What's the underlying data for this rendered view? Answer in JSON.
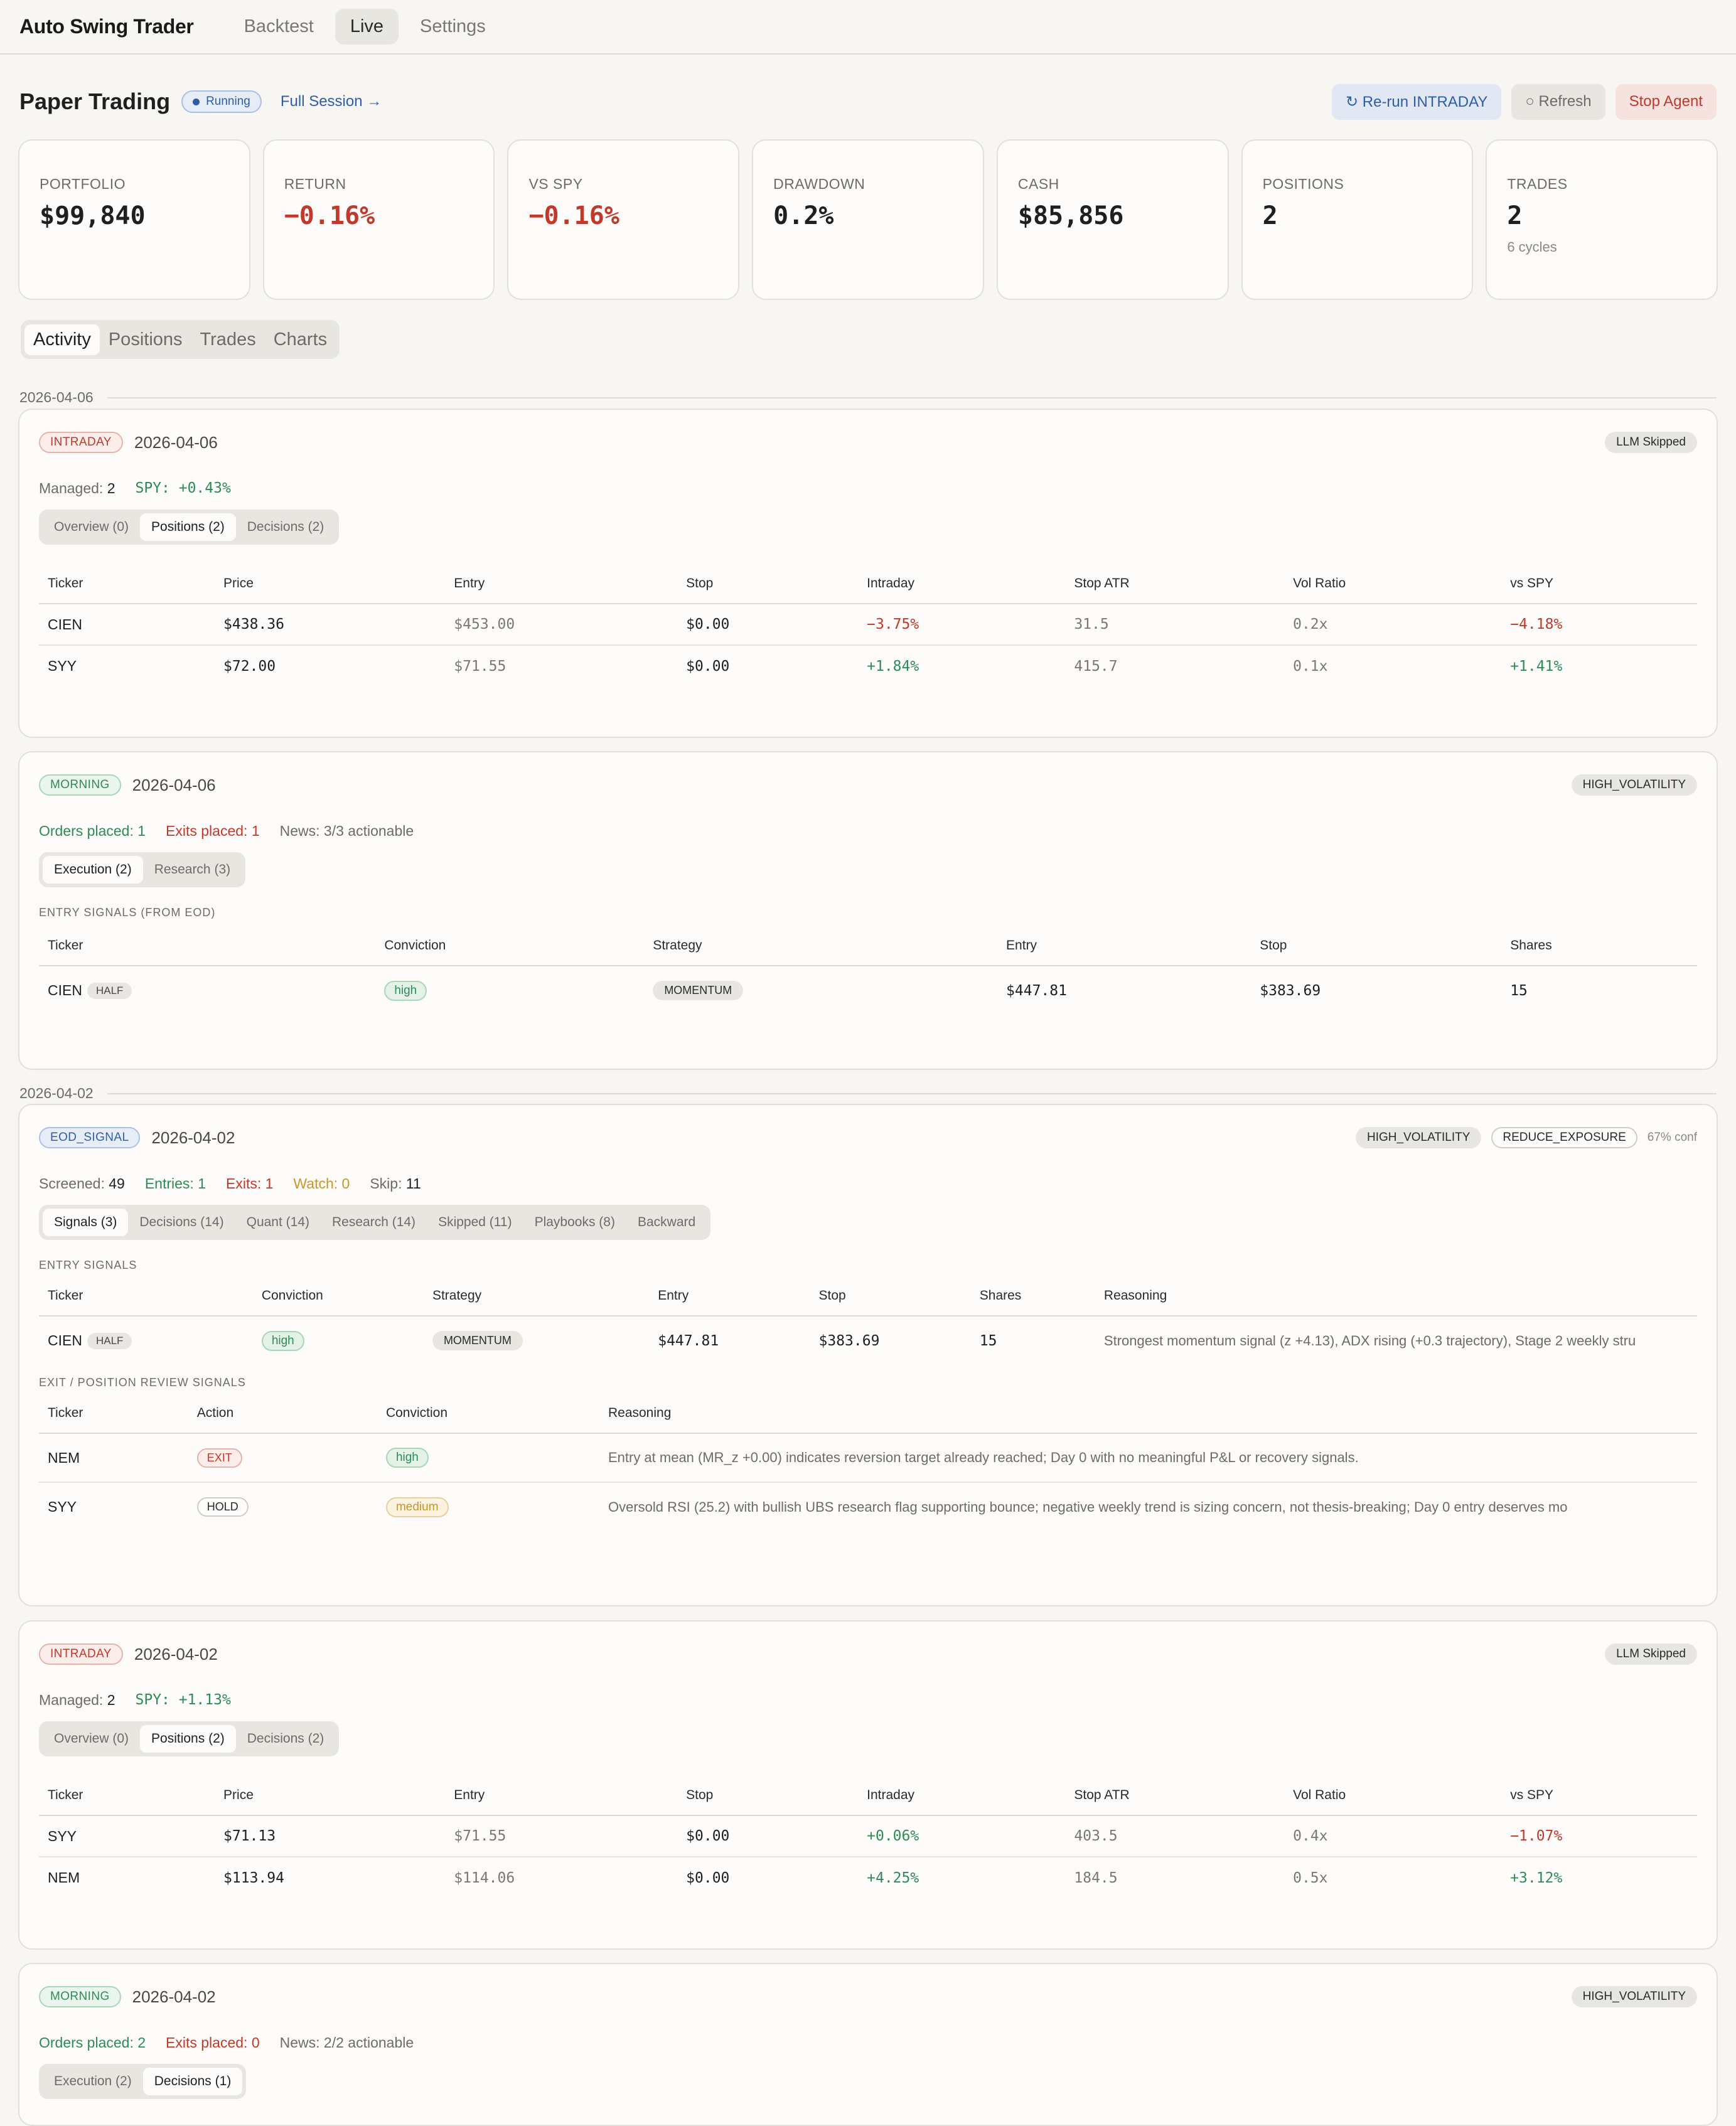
{
  "app": {
    "brand": "Auto Swing Trader",
    "nav": [
      "Backtest",
      "Live",
      "Settings"
    ],
    "active_nav": "Live"
  },
  "header": {
    "title": "Paper Trading",
    "status": "Running",
    "full_session": "Full Session →",
    "rerun_label": "↻ Re-run INTRADAY",
    "refresh_label": "○ Refresh",
    "stop_label": "Stop Agent"
  },
  "stats": {
    "portfolio": {
      "label": "PORTFOLIO",
      "value": "$99,840"
    },
    "return": {
      "label": "RETURN",
      "value": "−0.16%"
    },
    "vs_spy": {
      "label": "VS SPY",
      "value": "−0.16%"
    },
    "drawdown": {
      "label": "DRAWDOWN",
      "value": "0.2%"
    },
    "cash": {
      "label": "CASH",
      "value": "$85,856"
    },
    "positions": {
      "label": "POSITIONS",
      "value": "2"
    },
    "trades": {
      "label": "TRADES",
      "value": "2",
      "sub": "6 cycles"
    }
  },
  "section_tabs": [
    "Activity",
    "Positions",
    "Trades",
    "Charts"
  ],
  "dates": [
    "2026-04-06",
    "2026-04-02"
  ],
  "intraday_headers": [
    "Ticker",
    "Price",
    "Entry",
    "Stop",
    "Intraday",
    "Stop ATR",
    "Vol Ratio",
    "vs SPY"
  ],
  "signal_headers": [
    "Ticker",
    "Conviction",
    "Strategy",
    "Entry",
    "Stop",
    "Shares"
  ],
  "cycle1": {
    "type": "INTRADAY",
    "date": "2026-04-06",
    "badge": "LLM Skipped",
    "managed_label": "Managed:",
    "managed": "2",
    "spy": "SPY: +0.43%",
    "tabs": [
      "Overview (0)",
      "Positions (2)",
      "Decisions (2)"
    ],
    "rows": [
      [
        "CIEN",
        "$438.36",
        "$453.00",
        "$0.00",
        "−3.75%",
        "31.5",
        "0.2x",
        "−4.18%"
      ],
      [
        "SYY",
        "$72.00",
        "$71.55",
        "$0.00",
        "+1.84%",
        "415.7",
        "0.1x",
        "+1.41%"
      ]
    ]
  },
  "cycle2": {
    "type": "MORNING",
    "date": "2026-04-06",
    "badge": "HIGH_VOLATILITY",
    "orders": "Orders placed: 1",
    "exits": "Exits placed: 1",
    "news": "News: 3/3 actionable",
    "tabs": [
      "Execution (2)",
      "Research (3)"
    ],
    "section_label": "ENTRY SIGNALS (FROM EOD)",
    "row": {
      "ticker": "CIEN",
      "size": "HALF",
      "conviction": "high",
      "strategy": "MOMENTUM",
      "entry": "$447.81",
      "stop": "$383.69",
      "shares": "15"
    }
  },
  "cycle3": {
    "type": "EOD_SIGNAL",
    "date": "2026-04-02",
    "badge1": "HIGH_VOLATILITY",
    "badge2": "REDUCE_EXPOSURE",
    "conf": "67% conf",
    "screened_label": "Screened:",
    "screened": "49",
    "entries": "Entries: 1",
    "exits": "Exits: 1",
    "watch": "Watch: 0",
    "skip_label": "Skip:",
    "skip": "11",
    "tabs": [
      "Signals (3)",
      "Decisions (14)",
      "Quant (14)",
      "Research (14)",
      "Skipped (11)",
      "Playbooks (8)",
      "Backward"
    ],
    "entry_label": "ENTRY SIGNALS",
    "entry_headers": [
      "Ticker",
      "Conviction",
      "Strategy",
      "Entry",
      "Stop",
      "Shares",
      "Reasoning"
    ],
    "entry_row": {
      "ticker": "CIEN",
      "size": "HALF",
      "conviction": "high",
      "strategy": "MOMENTUM",
      "entry": "$447.81",
      "stop": "$383.69",
      "shares": "15",
      "reasoning": "Strongest momentum signal (z +4.13), ADX rising (+0.3 trajectory), Stage 2 weekly stru"
    },
    "exit_label": "EXIT / POSITION REVIEW SIGNALS",
    "exit_headers": [
      "Ticker",
      "Action",
      "Conviction",
      "Reasoning"
    ],
    "exit_rows": [
      {
        "ticker": "NEM",
        "action": "EXIT",
        "conviction": "high",
        "reasoning": "Entry at mean (MR_z +0.00) indicates reversion target already reached; Day 0 with no meaningful P&L or recovery signals."
      },
      {
        "ticker": "SYY",
        "action": "HOLD",
        "conviction": "medium",
        "reasoning": "Oversold RSI (25.2) with bullish UBS research flag supporting bounce; negative weekly trend is sizing concern, not thesis-breaking; Day 0 entry deserves mo"
      }
    ]
  },
  "cycle4": {
    "type": "INTRADAY",
    "date": "2026-04-02",
    "badge": "LLM Skipped",
    "managed_label": "Managed:",
    "managed": "2",
    "spy": "SPY: +1.13%",
    "tabs": [
      "Overview (0)",
      "Positions (2)",
      "Decisions (2)"
    ],
    "rows": [
      [
        "SYY",
        "$71.13",
        "$71.55",
        "$0.00",
        "+0.06%",
        "403.5",
        "0.4x",
        "−1.07%"
      ],
      [
        "NEM",
        "$113.94",
        "$114.06",
        "$0.00",
        "+4.25%",
        "184.5",
        "0.5x",
        "+3.12%"
      ]
    ]
  },
  "cycle5": {
    "type": "MORNING",
    "date": "2026-04-02",
    "badge": "HIGH_VOLATILITY",
    "orders": "Orders placed: 2",
    "exits": "Exits placed: 0",
    "news": "News: 2/2 actionable",
    "tabs": [
      "Execution (2)",
      "Decisions (1)"
    ]
  },
  "colors": {
    "positive": "#2e8b57",
    "negative": "#c0392b",
    "accent": "#2f5ea8",
    "warning": "#c9962a"
  }
}
